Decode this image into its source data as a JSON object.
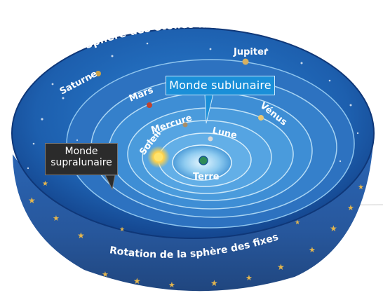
{
  "labels": {
    "outer_sphere": "Sphère des étoiles fixes",
    "rotation": "Rotation de la sphère des fixes",
    "sublunar": "Monde sublunaire",
    "supralunar_line1": "Monde",
    "supralunar_line2": "supralunaire"
  },
  "planets": [
    {
      "id": "saturne",
      "label": "Saturne",
      "color": "#c9a24a"
    },
    {
      "id": "jupiter",
      "label": "Jupiter",
      "color": "#d7b060"
    },
    {
      "id": "mars",
      "label": "Mars",
      "color": "#c0432f"
    },
    {
      "id": "venus",
      "label": "Vénus",
      "color": "#e9c774"
    },
    {
      "id": "mercure",
      "label": "Mercure",
      "color": "#a58d6a"
    },
    {
      "id": "lune",
      "label": "Lune",
      "color": "#d8d8d8"
    },
    {
      "id": "soleil",
      "label": "Soleil",
      "color": "#ffd24a"
    },
    {
      "id": "terre",
      "label": "Terre",
      "color": "#2e8b57"
    }
  ],
  "colors": {
    "outer_blue": "#1f62ad",
    "inner_blue": "#5aa6e3",
    "center_glow": "#cdeeff",
    "gold_band": "#c89a3a",
    "sublunar_box": "#1a8fd8",
    "supralunar_box": "#2b2b2b"
  }
}
